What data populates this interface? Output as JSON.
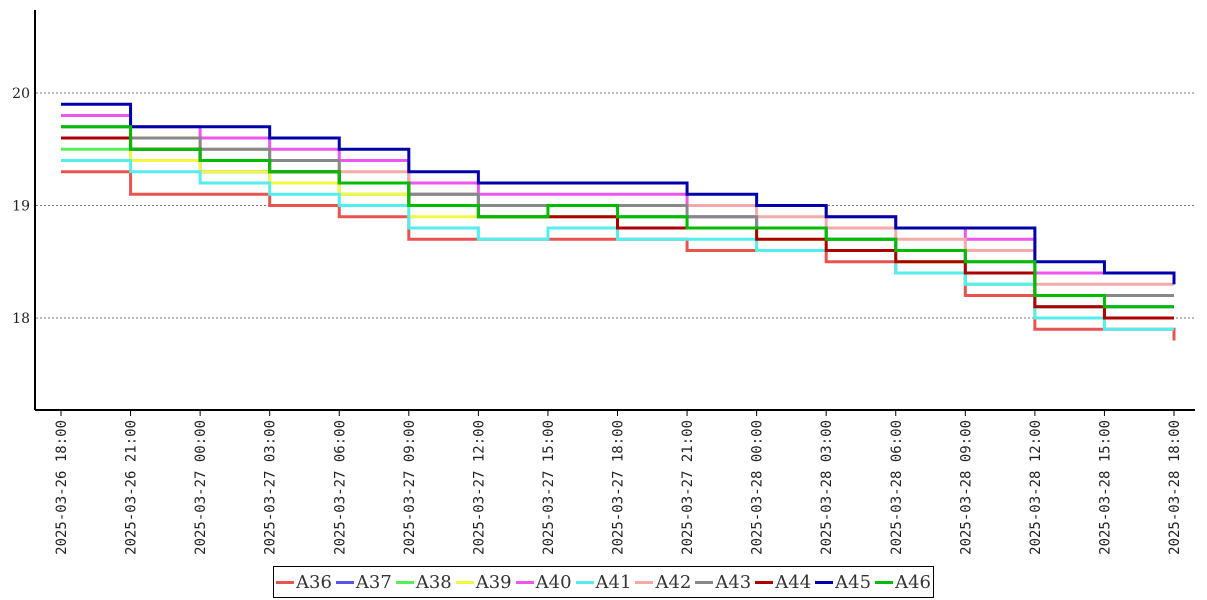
{
  "chart_data": {
    "type": "line",
    "title": "",
    "xlabel": "",
    "ylabel": "",
    "ylim": [
      17.2,
      20.8
    ],
    "yticks": [
      18,
      19,
      20
    ],
    "ytick_labels": [
      "18",
      "19",
      "20"
    ],
    "xlim": [
      "2025-03-26 18:00",
      "2025-03-28 18:00"
    ],
    "xticks": [
      "2025-03-26 18:00",
      "2025-03-26 21:00",
      "2025-03-27 00:00",
      "2025-03-27 03:00",
      "2025-03-27 06:00",
      "2025-03-27 09:00",
      "2025-03-27 12:00",
      "2025-03-27 15:00",
      "2025-03-27 18:00",
      "2025-03-27 21:00",
      "2025-03-28 00:00",
      "2025-03-28 03:00",
      "2025-03-28 06:00",
      "2025-03-28 09:00",
      "2025-03-28 12:00",
      "2025-03-28 15:00",
      "2025-03-28 18:00"
    ],
    "grid": "horizontal dotted",
    "legend_position": "bottom",
    "x": [
      "2025-03-26 18:00",
      "2025-03-26 21:00",
      "2025-03-27 00:00",
      "2025-03-27 03:00",
      "2025-03-27 06:00",
      "2025-03-27 09:00",
      "2025-03-27 12:00",
      "2025-03-27 15:00",
      "2025-03-27 18:00",
      "2025-03-27 21:00",
      "2025-03-28 00:00",
      "2025-03-28 03:00",
      "2025-03-28 06:00",
      "2025-03-28 09:00",
      "2025-03-28 12:00",
      "2025-03-28 15:00",
      "2025-03-28 18:00"
    ],
    "series": [
      {
        "name": "A36",
        "color": "#e8534f",
        "values": [
          19.3,
          19.1,
          19.1,
          19.0,
          18.9,
          18.7,
          18.7,
          18.7,
          18.7,
          18.6,
          18.6,
          18.5,
          18.4,
          18.2,
          17.9,
          17.9,
          17.8
        ]
      },
      {
        "name": "A37",
        "color": "#5555ee",
        "values": [
          19.6,
          19.5,
          19.3,
          19.3,
          19.2,
          19.1,
          19.0,
          19.0,
          18.9,
          18.9,
          18.8,
          18.7,
          18.6,
          18.4,
          18.1,
          18.1,
          18.1
        ]
      },
      {
        "name": "A38",
        "color": "#55ee55",
        "values": [
          19.5,
          19.4,
          19.3,
          19.2,
          19.1,
          19.0,
          18.9,
          18.9,
          18.9,
          18.8,
          18.8,
          18.7,
          18.5,
          18.3,
          18.1,
          18.0,
          18.0
        ]
      },
      {
        "name": "A39",
        "color": "#f5f545",
        "values": [
          19.6,
          19.4,
          19.3,
          19.2,
          19.1,
          18.9,
          18.9,
          18.9,
          18.8,
          18.8,
          18.7,
          18.6,
          18.5,
          18.4,
          18.0,
          18.0,
          18.0
        ]
      },
      {
        "name": "A40",
        "color": "#ee55ee",
        "values": [
          19.8,
          19.7,
          19.6,
          19.5,
          19.4,
          19.2,
          19.1,
          19.1,
          19.1,
          19.0,
          19.0,
          18.9,
          18.8,
          18.7,
          18.4,
          18.4,
          18.3
        ]
      },
      {
        "name": "A41",
        "color": "#55eeee",
        "values": [
          19.4,
          19.3,
          19.2,
          19.1,
          19.0,
          18.8,
          18.7,
          18.8,
          18.7,
          18.7,
          18.6,
          18.6,
          18.4,
          18.3,
          18.0,
          17.9,
          17.9
        ]
      },
      {
        "name": "A42",
        "color": "#f5aaaa",
        "values": [
          19.7,
          19.6,
          19.5,
          19.4,
          19.3,
          19.1,
          19.0,
          19.0,
          19.0,
          19.0,
          18.9,
          18.8,
          18.7,
          18.6,
          18.3,
          18.3,
          18.3
        ]
      },
      {
        "name": "A43",
        "color": "#888888",
        "values": [
          19.7,
          19.6,
          19.5,
          19.4,
          19.2,
          19.1,
          19.0,
          19.0,
          19.0,
          18.9,
          18.8,
          18.7,
          18.6,
          18.5,
          18.2,
          18.2,
          18.2
        ]
      },
      {
        "name": "A44",
        "color": "#aa0000",
        "values": [
          19.6,
          19.5,
          19.4,
          19.3,
          19.2,
          19.0,
          18.9,
          18.9,
          18.8,
          18.8,
          18.7,
          18.6,
          18.5,
          18.4,
          18.1,
          18.0,
          18.0
        ]
      },
      {
        "name": "A45",
        "color": "#0000aa",
        "values": [
          19.9,
          19.7,
          19.7,
          19.6,
          19.5,
          19.3,
          19.2,
          19.2,
          19.2,
          19.1,
          19.0,
          18.9,
          18.8,
          18.8,
          18.5,
          18.4,
          18.3
        ]
      },
      {
        "name": "A46",
        "color": "#00bb00",
        "values": [
          19.7,
          19.5,
          19.4,
          19.3,
          19.2,
          19.0,
          18.9,
          19.0,
          18.9,
          18.8,
          18.8,
          18.7,
          18.6,
          18.5,
          18.2,
          18.1,
          18.1
        ]
      }
    ]
  }
}
